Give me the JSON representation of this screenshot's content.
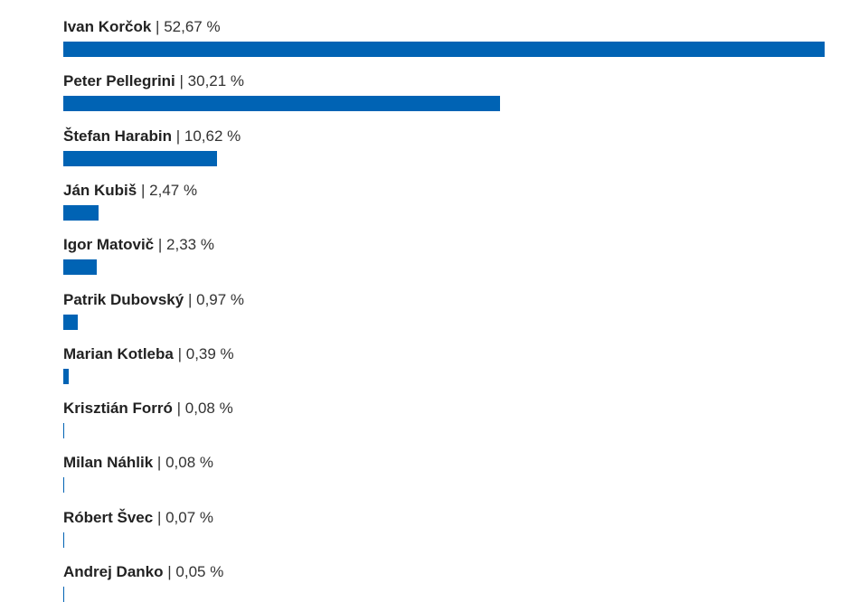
{
  "colors": {
    "bar": "#0063b4"
  },
  "chart_data": {
    "type": "bar",
    "orientation": "horizontal",
    "separator": "|",
    "unit": "%",
    "categories": [
      "Ivan Korčok",
      "Peter Pellegrini",
      "Štefan Harabin",
      "Ján Kubiš",
      "Igor Matovič",
      "Patrik Dubovský",
      "Marian Kotleba",
      "Krisztián Forró",
      "Milan Náhlik",
      "Róbert Švec",
      "Andrej Danko"
    ],
    "values": [
      52.67,
      30.21,
      10.62,
      2.47,
      2.33,
      0.97,
      0.39,
      0.08,
      0.08,
      0.07,
      0.05
    ],
    "value_labels": [
      "52,67 %",
      "30,21 %",
      "10,62 %",
      "2,47 %",
      "2,33 %",
      "0,97 %",
      "0,39 %",
      "0,08 %",
      "0,08 %",
      "0,07 %",
      "0,05 %"
    ],
    "xlim": [
      0,
      52.67
    ]
  }
}
